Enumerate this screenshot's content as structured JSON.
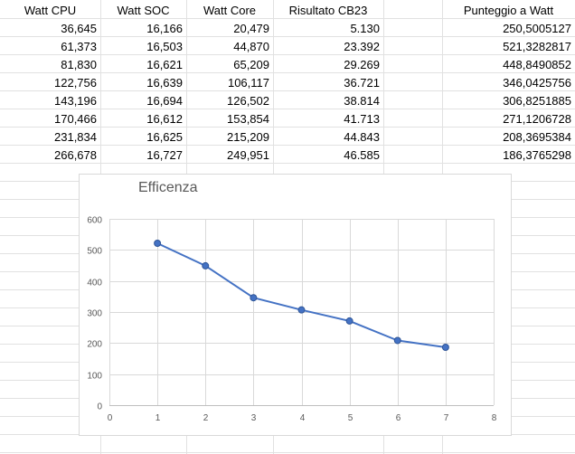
{
  "spreadsheet": {
    "headers": [
      "Watt CPU",
      "Watt SOC",
      "Watt Core",
      "Risultato CB23",
      "",
      "Punteggio a Watt"
    ],
    "rows": [
      [
        "36,645",
        "16,166",
        "20,479",
        "5.130",
        "",
        "250,5005127"
      ],
      [
        "61,373",
        "16,503",
        "44,870",
        "23.392",
        "",
        "521,3282817"
      ],
      [
        "81,830",
        "16,621",
        "65,209",
        "29.269",
        "",
        "448,8490852"
      ],
      [
        "122,756",
        "16,639",
        "106,117",
        "36.721",
        "",
        "346,0425756"
      ],
      [
        "143,196",
        "16,694",
        "126,502",
        "38.814",
        "",
        "306,8251885"
      ],
      [
        "170,466",
        "16,612",
        "153,854",
        "41.713",
        "",
        "271,1206728"
      ],
      [
        "231,834",
        "16,625",
        "215,209",
        "44.843",
        "",
        "208,3695384"
      ],
      [
        "266,678",
        "16,727",
        "249,951",
        "46.585",
        "",
        "186,3765298"
      ]
    ]
  },
  "chart_data": {
    "type": "scatter",
    "title": "Efficenza",
    "xlabel": "",
    "ylabel": "",
    "xlim": [
      0,
      8
    ],
    "ylim": [
      0,
      600
    ],
    "xticks": [
      0,
      1,
      2,
      3,
      4,
      5,
      6,
      7,
      8
    ],
    "yticks": [
      0,
      100,
      200,
      300,
      400,
      500,
      600
    ],
    "grid": true,
    "legend": "none",
    "line_color": "#4472c4",
    "marker_color": "#4472c4",
    "series": [
      {
        "x": [
          1,
          2,
          3,
          4,
          5,
          6,
          7
        ],
        "y": [
          521.33,
          448.85,
          346.04,
          306.83,
          271.12,
          208.37,
          186.38
        ]
      }
    ]
  }
}
